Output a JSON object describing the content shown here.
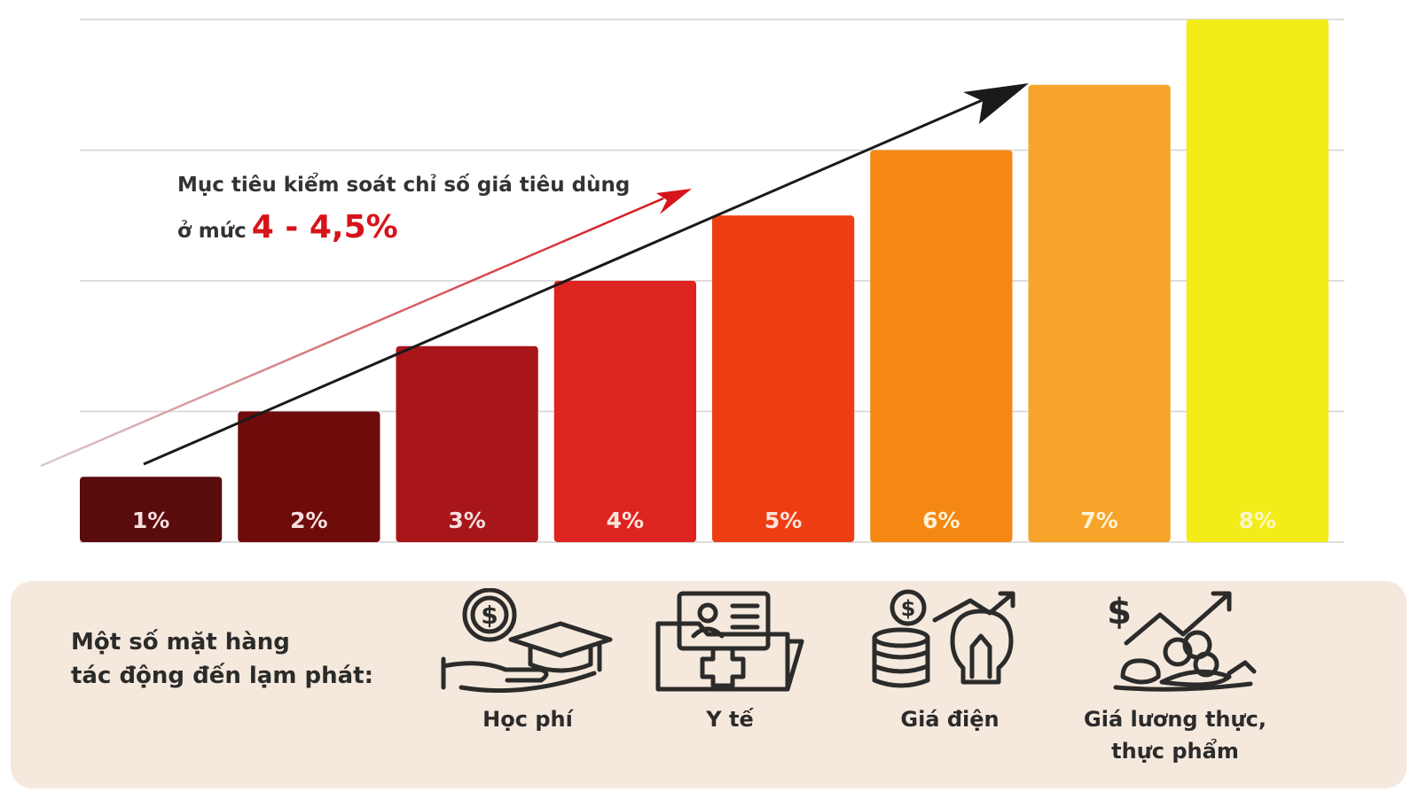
{
  "chart_data": {
    "type": "bar",
    "categories": [
      "1%",
      "2%",
      "3%",
      "4%",
      "5%",
      "6%",
      "7%",
      "8%"
    ],
    "values": [
      1,
      2,
      3,
      4,
      5,
      6,
      7,
      8
    ],
    "ylim": [
      0,
      8
    ],
    "grid": true,
    "bar_colors": [
      "#5a0b0b",
      "#6e0c0c",
      "#a8161a",
      "#de2420",
      "#ee3d12",
      "#f48812",
      "#f6a52a",
      "#f3ec19"
    ],
    "label_colors": [
      "#f6dede",
      "#f6dede",
      "#f6dede",
      "#fbe3dc",
      "#fbe3dc",
      "#fff2d6",
      "#fff2d6",
      "#faf6c8"
    ],
    "annotation": {
      "line1": "Mục tiêu kiểm soát chỉ số giá tiêu dùng",
      "line2_prefix": "ở mức",
      "highlight": "4 - 4,5%"
    }
  },
  "panel": {
    "title_line1": "Một số mặt hàng",
    "title_line2": "tác động đến lạm phát:",
    "items": [
      {
        "label": "Học phí",
        "icon": "tuition-icon"
      },
      {
        "label": "Y tế",
        "icon": "healthcare-icon"
      },
      {
        "label": "Giá điện",
        "icon": "electricity-price-icon"
      },
      {
        "label_line1": "Giá lương thực,",
        "label_line2": "thực phẩm",
        "icon": "food-price-icon"
      }
    ],
    "background": "#f5e8dc"
  }
}
